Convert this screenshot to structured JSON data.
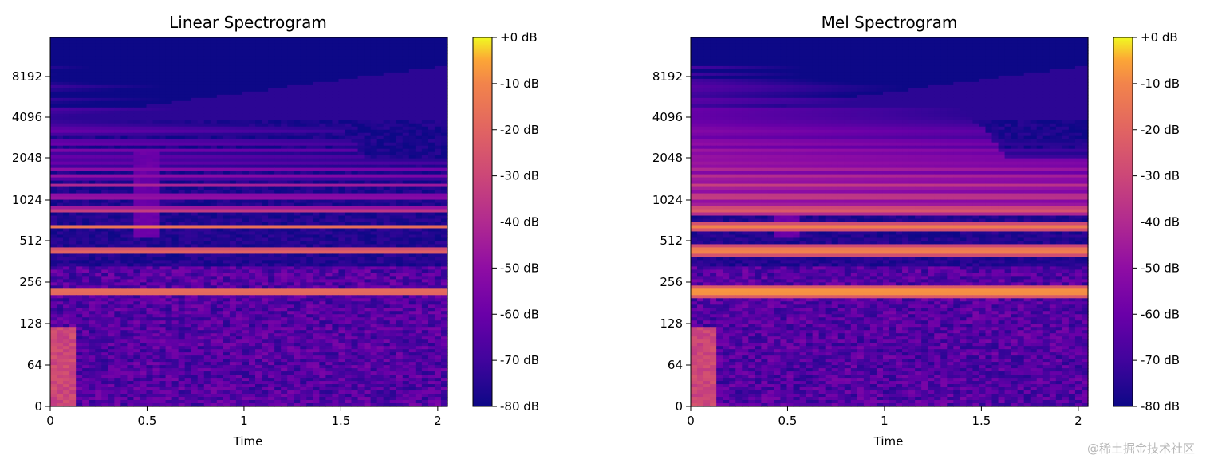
{
  "chart_data": [
    {
      "type": "heatmap",
      "title": "Linear Spectrogram",
      "xlabel": "Time",
      "ylabel": "",
      "xlim": [
        0,
        2.05
      ],
      "x_ticks": [
        0,
        0.5,
        1,
        1.5,
        2
      ],
      "x_tick_labels": [
        "0",
        "0.5",
        "1",
        "1.5",
        "2"
      ],
      "y_scale": "symlog (Hz)",
      "y_tick_labels": [
        "0",
        "64",
        "128",
        "256",
        "512",
        "1024",
        "2048",
        "4096",
        "8192"
      ],
      "colorbar": {
        "range_db": [
          -80,
          0
        ],
        "tick_labels": [
          "+0 dB",
          "-10 dB",
          "-20 dB",
          "-30 dB",
          "-40 dB",
          "-50 dB",
          "-60 dB",
          "-70 dB",
          "-80 dB"
        ],
        "colormap": "plasma"
      },
      "harmonics_hz": [
        220,
        440,
        660,
        880,
        1100,
        1320,
        1540,
        1760,
        1980,
        2200,
        2420,
        2640,
        2860,
        3080,
        3300,
        3520,
        3740,
        3960,
        4180,
        4400,
        4620,
        4840,
        5280,
        5720,
        6160,
        6600,
        7040,
        7480,
        7920,
        8800,
        9680
      ],
      "harmonic_levels_db": [
        -3,
        -8,
        -15,
        -24,
        -34,
        -38,
        -42,
        -45,
        -48,
        -50,
        -52,
        -54,
        -56,
        -58,
        -60,
        -61,
        -62,
        -63,
        -64,
        -65,
        -66,
        -67,
        -68,
        -69,
        -70,
        -71,
        -72,
        -73,
        -74,
        -75,
        -76
      ],
      "decay_db_per_s_per_khz": 2.2
    },
    {
      "type": "heatmap",
      "title": "Mel Spectrogram",
      "xlabel": "Time",
      "ylabel": "",
      "xlim": [
        0,
        2.05
      ],
      "x_ticks": [
        0,
        0.5,
        1,
        1.5,
        2
      ],
      "x_tick_labels": [
        "0",
        "0.5",
        "1",
        "1.5",
        "2"
      ],
      "y_scale": "mel (Hz)",
      "y_tick_labels": [
        "0",
        "64",
        "128",
        "256",
        "512",
        "1024",
        "2048",
        "4096",
        "8192"
      ],
      "colorbar": {
        "range_db": [
          -80,
          0
        ],
        "tick_labels": [
          "+0 dB",
          "-10 dB",
          "-20 dB",
          "-30 dB",
          "-40 dB",
          "-50 dB",
          "-60 dB",
          "-70 dB",
          "-80 dB"
        ],
        "colormap": "plasma"
      },
      "harmonics_hz": [
        220,
        440,
        660,
        880,
        1100,
        1320,
        1540,
        1760,
        1980,
        2200,
        2420,
        2640,
        2860,
        3080,
        3300,
        3520,
        3740,
        3960,
        4180,
        4400,
        4620,
        4840,
        5280,
        5720,
        6160,
        6600,
        7040,
        7480,
        7920,
        8800,
        9680
      ],
      "harmonic_levels_db": [
        -2,
        -6,
        -12,
        -20,
        -28,
        -32,
        -36,
        -39,
        -42,
        -44,
        -46,
        -48,
        -50,
        -52,
        -54,
        -55,
        -56,
        -57,
        -58,
        -59,
        -60,
        -61,
        -62,
        -63,
        -64,
        -65,
        -66,
        -67,
        -68,
        -69,
        -70
      ],
      "decay_db_per_s_per_khz": 2.0
    }
  ],
  "watermark": "@稀土掘金技术社区"
}
